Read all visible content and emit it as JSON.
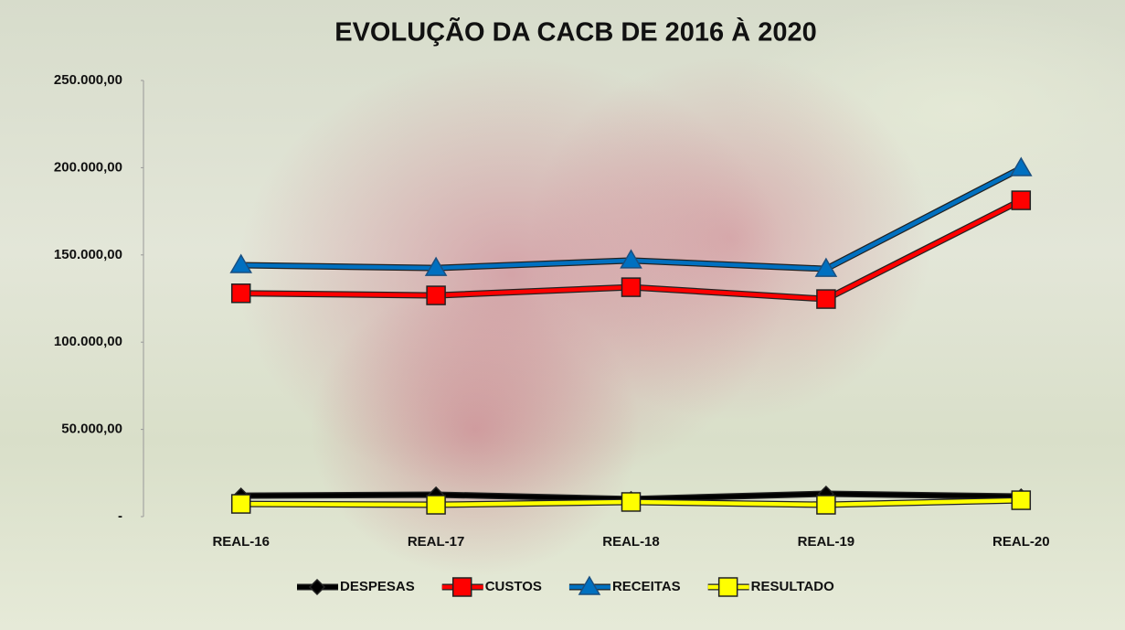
{
  "chart_data": {
    "type": "line",
    "title": "EVOLUÇÃO DA CACB DE 2016 À 2020",
    "categories": [
      "REAL-16",
      "REAL-17",
      "REAL-18",
      "REAL-19",
      "REAL-20"
    ],
    "series": [
      {
        "name": "DESPESAS",
        "color": "#000000",
        "marker": "diamond",
        "values": [
          12000,
          12600,
          10000,
          13100,
          11500
        ]
      },
      {
        "name": "CUSTOS",
        "color": "#ff0000",
        "marker": "square",
        "values": [
          128000,
          126800,
          131500,
          124700,
          181300
        ]
      },
      {
        "name": "RECEITAS",
        "color": "#0070c0",
        "marker": "triangle",
        "values": [
          144100,
          142500,
          146800,
          142000,
          199700
        ]
      },
      {
        "name": "RESULTADO",
        "color": "#ffff00",
        "marker": "square",
        "values": [
          7300,
          6800,
          8400,
          6800,
          9400
        ]
      }
    ],
    "ylim": [
      0,
      250000
    ],
    "yticks": [
      {
        "value": 0,
        "label": "-"
      },
      {
        "value": 50000,
        "label": "50.000,00"
      },
      {
        "value": 100000,
        "label": "100.000,00"
      },
      {
        "value": 150000,
        "label": "150.000,00"
      },
      {
        "value": 200000,
        "label": "200.000,00"
      },
      {
        "value": 250000,
        "label": "250.000,00"
      }
    ],
    "grid": false,
    "legend": "bottom"
  }
}
